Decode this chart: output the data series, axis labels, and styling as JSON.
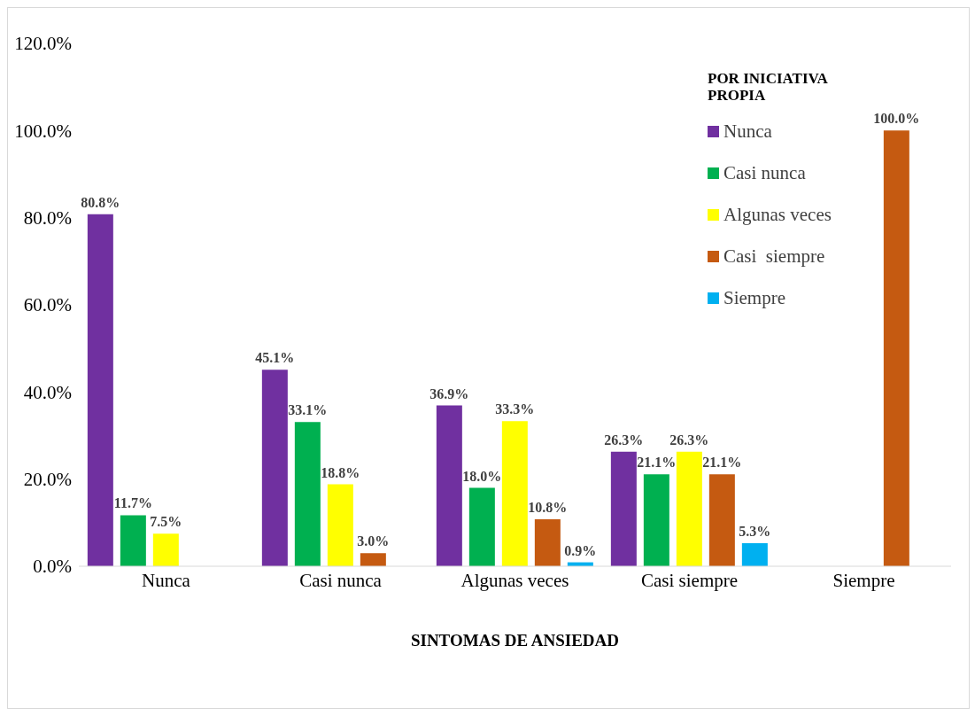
{
  "chart_data": {
    "type": "bar",
    "xlabel": "SINTOMAS DE ANSIEDAD",
    "legend_title": "POR INICIATIVA PROPIA",
    "legend": "top right",
    "grid": false,
    "categories": [
      "Nunca",
      "Casi nunca",
      "Algunas veces",
      "Casi siempre",
      "Siempre"
    ],
    "series": [
      {
        "name": "Nunca",
        "color": "#7030a0",
        "values": [
          80.8,
          45.1,
          36.9,
          26.3,
          null
        ],
        "value_labels": [
          "80.8%",
          "45.1%",
          "36.9%",
          "26.3%",
          null
        ]
      },
      {
        "name": "Casi nunca",
        "color": "#00b050",
        "values": [
          11.7,
          33.1,
          18.0,
          21.1,
          null
        ],
        "value_labels": [
          "11.7%",
          "33.1%",
          "18.0%",
          "21.1%",
          null
        ]
      },
      {
        "name": "Algunas veces",
        "color": "#ffff00",
        "values": [
          7.5,
          18.8,
          33.3,
          26.3,
          null
        ],
        "value_labels": [
          "7.5%",
          "18.8%",
          "33.3%",
          "26.3%",
          null
        ]
      },
      {
        "name": "Casi  siempre",
        "color": "#c55a11",
        "values": [
          null,
          3.0,
          10.8,
          21.1,
          100.0
        ],
        "value_labels": [
          null,
          "3.0%",
          "10.8%",
          "21.1%",
          "100.0%"
        ]
      },
      {
        "name": "Siempre",
        "color": "#00b0f0",
        "values": [
          null,
          null,
          0.9,
          5.3,
          null
        ],
        "value_labels": [
          null,
          null,
          "0.9%",
          "5.3%",
          null
        ]
      }
    ],
    "ylim": [
      0,
      120
    ],
    "yticks": [
      {
        "value": 0,
        "label": "0.0%"
      },
      {
        "value": 20,
        "label": "20.0%"
      },
      {
        "value": 40,
        "label": "40.0%"
      },
      {
        "value": 60,
        "label": "60.0%"
      },
      {
        "value": 80,
        "label": "80.0%"
      },
      {
        "value": 100,
        "label": "100.0%"
      },
      {
        "value": 120,
        "label": "120.0%"
      }
    ]
  }
}
